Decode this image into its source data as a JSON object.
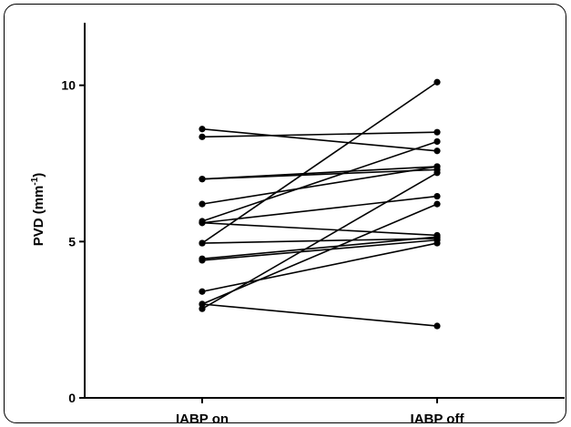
{
  "chart_data": {
    "type": "line",
    "title": "",
    "xlabel": "",
    "ylabel": "PVD (mm",
    "ylabel_sup": "-1",
    "ylabel_close": ")",
    "categories": [
      "IABP on",
      "IABP off"
    ],
    "ylim": [
      0,
      12
    ],
    "yticks": [
      {
        "value": 0,
        "label": "0"
      },
      {
        "value": 5,
        "label": "5"
      },
      {
        "value": 10,
        "label": "10"
      }
    ],
    "grid": false,
    "legend": "none",
    "colors": {
      "line": "#000000",
      "marker": "#000000",
      "axis": "#000000"
    },
    "pairs": [
      [
        8.6,
        7.9
      ],
      [
        8.35,
        8.5
      ],
      [
        7.0,
        7.4
      ],
      [
        7.0,
        7.3
      ],
      [
        6.2,
        7.4
      ],
      [
        5.65,
        8.2
      ],
      [
        5.6,
        6.45
      ],
      [
        5.6,
        5.2
      ],
      [
        4.95,
        10.1
      ],
      [
        4.95,
        5.1
      ],
      [
        4.45,
        5.15
      ],
      [
        4.4,
        5.05
      ],
      [
        3.4,
        4.95
      ],
      [
        3.0,
        6.2
      ],
      [
        2.85,
        7.2
      ],
      [
        3.0,
        2.3
      ]
    ]
  }
}
